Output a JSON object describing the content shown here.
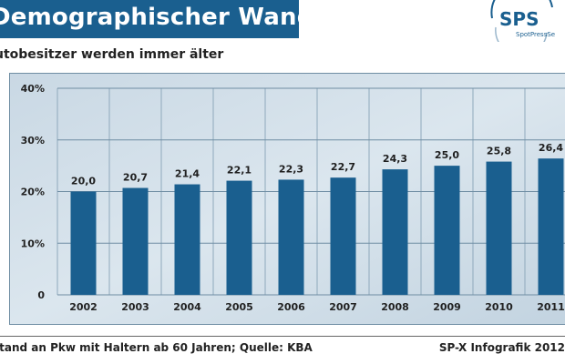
{
  "header": {
    "title": "Demographischer Wandel",
    "subtitle": "utobesitzer werden immer älter"
  },
  "logo": {
    "text": "SPS",
    "tagline": "SpotPressSe"
  },
  "footer": {
    "source": "stand an Pkw mit Haltern ab 60 Jahren; Quelle: KBA",
    "credit": "SP-X Infografik 2012"
  },
  "colors": {
    "banner": "#1a5f8f",
    "bar": "#1a5f8f",
    "plot_background": "#d4e1eb"
  },
  "chart_data": {
    "type": "bar",
    "categories": [
      "2002",
      "2003",
      "2004",
      "2005",
      "2006",
      "2007",
      "2008",
      "2009",
      "2010",
      "2011"
    ],
    "values": [
      20.0,
      20.7,
      21.4,
      22.1,
      22.3,
      22.7,
      24.3,
      25.0,
      25.8,
      26.4
    ],
    "value_labels": [
      "20,0",
      "20,7",
      "21,4",
      "22,1",
      "22,3",
      "22,7",
      "24,3",
      "25,0",
      "25,8",
      "26,4"
    ],
    "y_ticks": [
      0,
      10,
      20,
      30,
      40
    ],
    "y_tick_labels": [
      "0",
      "10%",
      "20%",
      "30%",
      "40%"
    ],
    "ylim": [
      0,
      40
    ],
    "grid": true,
    "title": "",
    "xlabel": "",
    "ylabel": ""
  }
}
